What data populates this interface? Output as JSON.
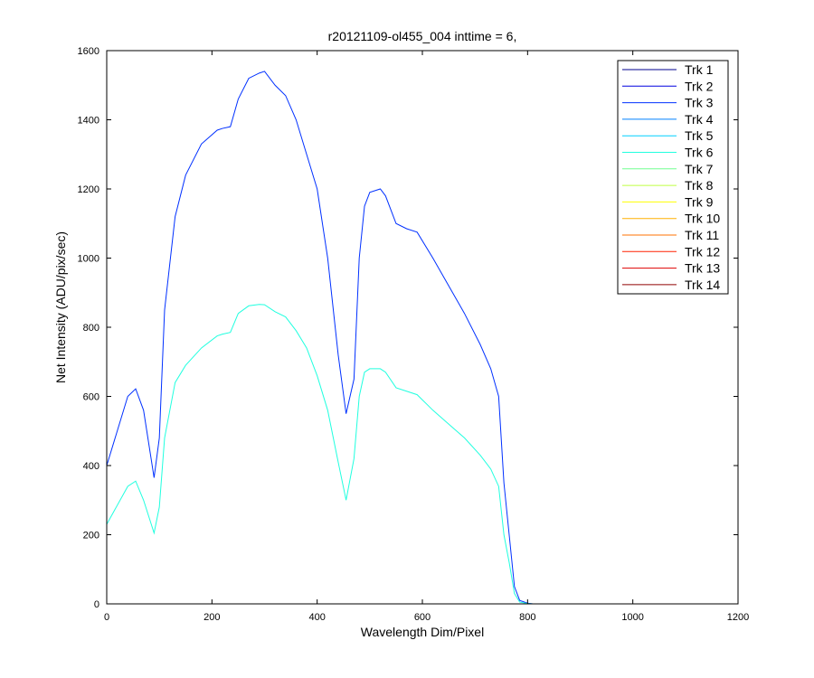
{
  "chart_data": {
    "type": "line",
    "title": "r20121109-ol455_004 inttime = 6,",
    "xlabel": "Wavelength Dim/Pixel",
    "ylabel": "Net Intensity (ADU/pix/sec)",
    "xlim": [
      0,
      1200
    ],
    "ylim": [
      0,
      1600
    ],
    "xticks": [
      0,
      200,
      400,
      600,
      800,
      1000,
      1200
    ],
    "yticks": [
      0,
      200,
      400,
      600,
      800,
      1000,
      1200,
      1400,
      1600
    ],
    "xtick_labels": [
      "0",
      "200",
      "400",
      "600",
      "800",
      "1000",
      "1200"
    ],
    "ytick_labels": [
      "0",
      "200",
      "400",
      "600",
      "800",
      "1000",
      "1200",
      "1400",
      "1600"
    ],
    "grid": false,
    "legend_position": "top-right",
    "series": [
      {
        "name": "Trk 1",
        "color": "#00008f",
        "x": [
          0,
          1024
        ],
        "y": [
          0,
          0
        ]
      },
      {
        "name": "Trk 2",
        "color": "#0000df",
        "x": [
          0,
          1024
        ],
        "y": [
          0,
          0
        ]
      },
      {
        "name": "Trk 3",
        "color": "#0030ff",
        "x": [
          0,
          40,
          55,
          70,
          90,
          100,
          110,
          130,
          150,
          180,
          210,
          220,
          235,
          250,
          270,
          290,
          300,
          320,
          340,
          360,
          380,
          400,
          420,
          440,
          455,
          470,
          480,
          490,
          500,
          520,
          530,
          550,
          570,
          590,
          620,
          650,
          680,
          710,
          730,
          745,
          755,
          765,
          775,
          785,
          800,
          810,
          900,
          1024
        ],
        "y": [
          400,
          600,
          622,
          560,
          365,
          480,
          850,
          1120,
          1240,
          1330,
          1370,
          1375,
          1380,
          1460,
          1520,
          1535,
          1540,
          1500,
          1470,
          1400,
          1300,
          1200,
          1000,
          720,
          550,
          650,
          1000,
          1150,
          1190,
          1200,
          1180,
          1100,
          1085,
          1075,
          1000,
          920,
          840,
          750,
          680,
          600,
          350,
          200,
          50,
          10,
          2,
          0,
          0,
          0
        ]
      },
      {
        "name": "Trk 4",
        "color": "#0080ff",
        "x": [
          0,
          1024
        ],
        "y": [
          0,
          0
        ]
      },
      {
        "name": "Trk 5",
        "color": "#00d0ff",
        "x": [
          0,
          1024
        ],
        "y": [
          0,
          0
        ]
      },
      {
        "name": "Trk 6",
        "color": "#20ffdf",
        "x": [
          0,
          40,
          55,
          70,
          90,
          100,
          110,
          130,
          150,
          180,
          210,
          220,
          235,
          250,
          270,
          290,
          300,
          320,
          340,
          360,
          380,
          400,
          420,
          440,
          455,
          470,
          480,
          490,
          500,
          520,
          530,
          550,
          570,
          590,
          620,
          650,
          680,
          710,
          730,
          745,
          755,
          765,
          775,
          785,
          800,
          810,
          900,
          1024
        ],
        "y": [
          230,
          340,
          355,
          300,
          205,
          280,
          480,
          640,
          690,
          740,
          775,
          780,
          785,
          840,
          862,
          866,
          865,
          845,
          830,
          790,
          740,
          660,
          560,
          410,
          300,
          420,
          600,
          670,
          680,
          680,
          670,
          625,
          615,
          605,
          560,
          520,
          480,
          430,
          390,
          340,
          200,
          120,
          30,
          5,
          1,
          0,
          0,
          0
        ]
      },
      {
        "name": "Trk 7",
        "color": "#70ff8f",
        "x": [
          0,
          1024
        ],
        "y": [
          0,
          0
        ]
      },
      {
        "name": "Trk 8",
        "color": "#bfff40",
        "x": [
          0,
          1024
        ],
        "y": [
          0,
          0
        ]
      },
      {
        "name": "Trk 9",
        "color": "#ffff00",
        "x": [
          0,
          1024
        ],
        "y": [
          0,
          0
        ]
      },
      {
        "name": "Trk 10",
        "color": "#ffb000",
        "x": [
          0,
          1024
        ],
        "y": [
          0,
          0
        ]
      },
      {
        "name": "Trk 11",
        "color": "#ff7000",
        "x": [
          0,
          1024
        ],
        "y": [
          0,
          0
        ]
      },
      {
        "name": "Trk 12",
        "color": "#ff2000",
        "x": [
          0,
          1024
        ],
        "y": [
          0,
          0
        ]
      },
      {
        "name": "Trk 13",
        "color": "#df0000",
        "x": [
          0,
          1024
        ],
        "y": [
          0,
          0
        ]
      },
      {
        "name": "Trk 14",
        "color": "#8f0000",
        "x": [
          0,
          1024
        ],
        "y": [
          0,
          0
        ]
      }
    ]
  }
}
